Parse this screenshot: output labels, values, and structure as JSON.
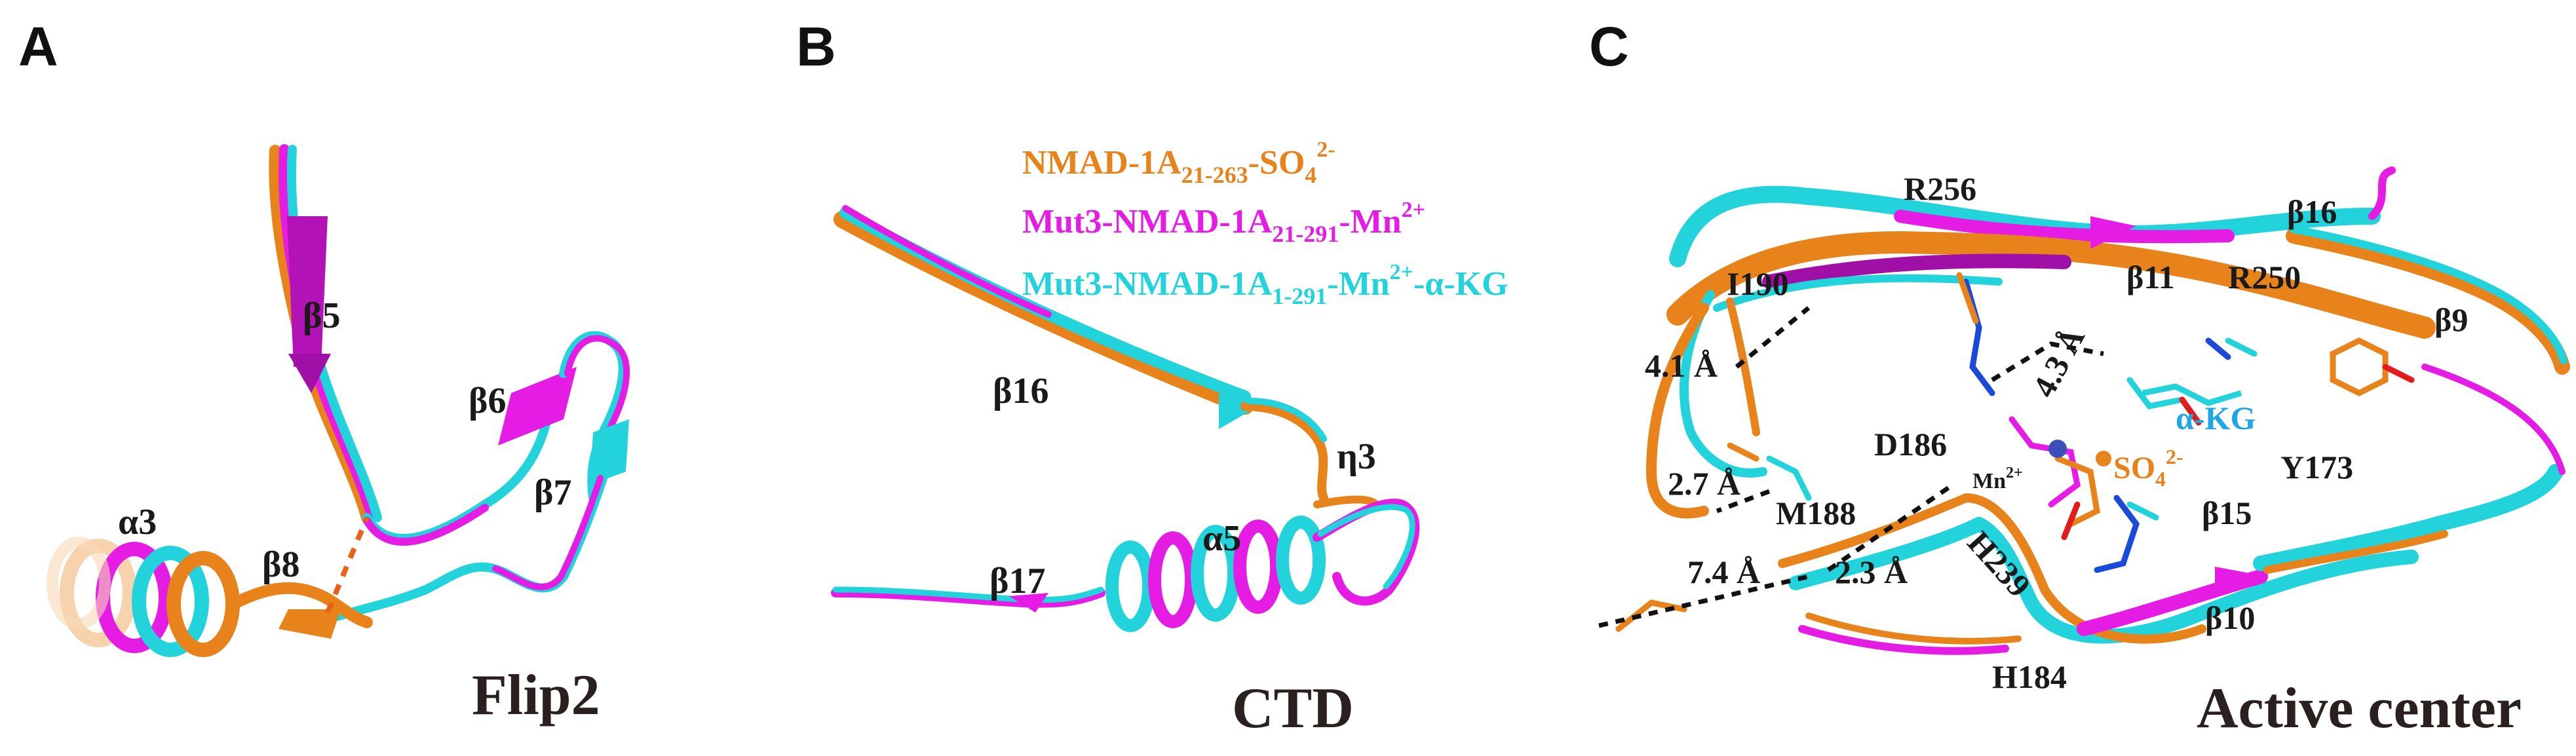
{
  "panels": {
    "a": {
      "letter": "A",
      "caption": "Flip2",
      "labels": {
        "alpha3": "α3",
        "beta5": "β5",
        "beta6": "β6",
        "beta7": "β7",
        "beta8": "β8"
      }
    },
    "b": {
      "letter": "B",
      "caption": "CTD",
      "labels": {
        "beta16": "β16",
        "eta3": "η3",
        "alpha5": "α5",
        "beta17": "β17"
      }
    },
    "c": {
      "letter": "C",
      "caption": "Active center",
      "labels": {
        "r256": "R256",
        "i190": "I190",
        "beta11": "β11",
        "beta16": "β16",
        "r250": "R250",
        "beta9": "β9",
        "akg": "α-KG",
        "y173": "Y173",
        "d186": "D186",
        "m188": "M188",
        "h239": "H239",
        "beta15": "β15",
        "beta10": "β10",
        "h184": "H184",
        "so4_main": "SO",
        "so4_sub": "4",
        "so4_sup": "2-",
        "mn_main": "Mn",
        "mn_sup": "2+"
      },
      "distances": {
        "d1": "4.1 Å",
        "d2": "4.3 Å",
        "d3": "2.7 Å",
        "d4": "7.4 Å",
        "d5": "2.3 Å"
      }
    }
  },
  "legend": [
    {
      "main": "NMAD-1A",
      "sub": "21-263",
      "mid": "-SO",
      "sub2": "4",
      "sup": "2-",
      "color": "#e8821a"
    },
    {
      "main": "Mut3-NMAD-1A",
      "sub": "21-291",
      "mid": "-Mn",
      "sup": "2+",
      "color": "#e41ce4"
    },
    {
      "main": "Mut3-NMAD-1A",
      "sub": "1-291",
      "mid": "-Mn",
      "sup": "2+",
      "tail": "-α-KG",
      "color": "#22d3dc"
    }
  ],
  "colors": {
    "orange": "#e8821a",
    "magenta": "#e41ce4",
    "cyan": "#22d3dc",
    "dark_orange": "#c8650e",
    "dark_cyan": "#14a7ae",
    "dark_magenta": "#a010a6",
    "akg_label": "#1fa6e6"
  }
}
